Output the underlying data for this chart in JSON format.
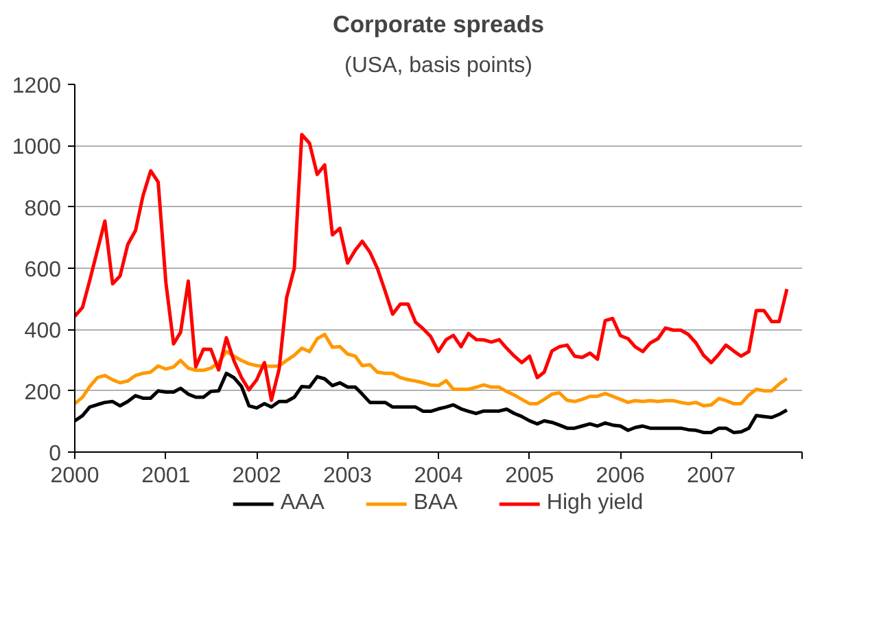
{
  "chart_data": {
    "type": "line",
    "title": "Corporate spreads",
    "subtitle": "(USA, basis points)",
    "x": [
      "2000-01",
      "2000-02",
      "2000-03",
      "2000-04",
      "2000-05",
      "2000-06",
      "2000-07",
      "2000-08",
      "2000-09",
      "2000-10",
      "2000-11",
      "2000-12",
      "2001-01",
      "2001-02",
      "2001-03",
      "2001-04",
      "2001-05",
      "2001-06",
      "2001-07",
      "2001-08",
      "2001-09",
      "2001-10",
      "2001-11",
      "2001-12",
      "2002-01",
      "2002-02",
      "2002-03",
      "2002-04",
      "2002-05",
      "2002-06",
      "2002-07",
      "2002-08",
      "2002-09",
      "2002-10",
      "2002-11",
      "2002-12",
      "2003-01",
      "2003-02",
      "2003-03",
      "2003-04",
      "2003-05",
      "2003-06",
      "2003-07",
      "2003-08",
      "2003-09",
      "2003-10",
      "2003-11",
      "2003-12",
      "2004-01",
      "2004-02",
      "2004-03",
      "2004-04",
      "2004-05",
      "2004-06",
      "2004-07",
      "2004-08",
      "2004-09",
      "2004-10",
      "2004-11",
      "2004-12",
      "2005-01",
      "2005-02",
      "2005-03",
      "2005-04",
      "2005-05",
      "2005-06",
      "2005-07",
      "2005-08",
      "2005-09",
      "2005-10",
      "2005-11",
      "2005-12",
      "2006-01",
      "2006-02",
      "2006-03",
      "2006-04",
      "2006-05",
      "2006-06",
      "2006-07",
      "2006-08",
      "2006-09",
      "2006-10",
      "2006-11",
      "2006-12",
      "2007-01",
      "2007-02",
      "2007-03",
      "2007-04",
      "2007-05",
      "2007-06",
      "2007-07",
      "2007-08",
      "2007-09",
      "2007-10",
      "2007-11"
    ],
    "series": [
      {
        "name": "AAA",
        "color": "#000000",
        "values": [
          102,
          119,
          147,
          155,
          162,
          165,
          151,
          165,
          184,
          176,
          176,
          200,
          196,
          196,
          208,
          189,
          179,
          179,
          198,
          200,
          257,
          243,
          214,
          151,
          144,
          158,
          147,
          165,
          165,
          179,
          214,
          212,
          246,
          239,
          217,
          226,
          212,
          212,
          189,
          162,
          162,
          162,
          147,
          147,
          147,
          147,
          133,
          133,
          141,
          147,
          154,
          141,
          133,
          126,
          134,
          134,
          134,
          140,
          126,
          116,
          102,
          92,
          102,
          97,
          88,
          78,
          78,
          85,
          92,
          85,
          95,
          88,
          85,
          71,
          80,
          85,
          78,
          78,
          78,
          78,
          78,
          73,
          71,
          64,
          64,
          78,
          78,
          64,
          66,
          78,
          119,
          116,
          113,
          123,
          137
        ]
      },
      {
        "name": "BAA",
        "color": "#ff9900",
        "values": [
          158,
          179,
          214,
          243,
          250,
          236,
          226,
          232,
          250,
          257,
          261,
          281,
          271,
          278,
          299,
          274,
          267,
          267,
          274,
          292,
          328,
          313,
          299,
          288,
          282,
          281,
          280,
          281,
          299,
          316,
          339,
          328,
          370,
          384,
          342,
          344,
          320,
          313,
          282,
          285,
          261,
          257,
          257,
          243,
          236,
          232,
          226,
          219,
          217,
          233,
          205,
          205,
          205,
          212,
          219,
          212,
          212,
          198,
          186,
          172,
          158,
          158,
          172,
          189,
          193,
          169,
          165,
          172,
          182,
          182,
          191,
          182,
          172,
          162,
          168,
          165,
          168,
          165,
          168,
          168,
          162,
          158,
          162,
          151,
          154,
          175,
          168,
          158,
          158,
          186,
          205,
          200,
          200,
          222,
          240
        ]
      },
      {
        "name": "High yield",
        "color": "#ff0000",
        "values": [
          443,
          472,
          560,
          659,
          754,
          549,
          575,
          678,
          723,
          836,
          918,
          881,
          553,
          353,
          391,
          558,
          278,
          336,
          335,
          268,
          373,
          299,
          243,
          203,
          236,
          292,
          169,
          271,
          504,
          600,
          1036,
          1008,
          906,
          937,
          709,
          730,
          617,
          659,
          688,
          652,
          599,
          525,
          450,
          483,
          483,
          424,
          402,
          377,
          328,
          367,
          381,
          344,
          387,
          367,
          366,
          359,
          367,
          339,
          313,
          292,
          313,
          243,
          261,
          330,
          344,
          349,
          313,
          309,
          323,
          303,
          429,
          436,
          380,
          370,
          344,
          328,
          356,
          370,
          405,
          398,
          398,
          384,
          356,
          316,
          292,
          320,
          349,
          330,
          313,
          328,
          462,
          462,
          426,
          426,
          532
        ]
      }
    ],
    "xlim": [
      "2000",
      "2008"
    ],
    "xticks": [
      {
        "value": "2000",
        "label": "2000"
      },
      {
        "value": "2001",
        "label": "2001"
      },
      {
        "value": "2002",
        "label": "2002"
      },
      {
        "value": "2003",
        "label": "2003"
      },
      {
        "value": "2004",
        "label": "2004"
      },
      {
        "value": "2005",
        "label": "2005"
      },
      {
        "value": "2006",
        "label": "2006"
      },
      {
        "value": "2007",
        "label": "2007"
      },
      {
        "value": "2008",
        "label": null
      }
    ],
    "ylim": [
      0,
      1200
    ],
    "yticks": [
      0,
      200,
      400,
      600,
      800,
      1000,
      1200
    ],
    "grid": "y",
    "legend": "bottom",
    "marker": "none",
    "line_style": "solid"
  }
}
